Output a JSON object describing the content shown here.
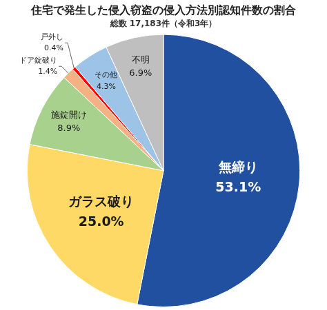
{
  "chart_data": {
    "type": "pie",
    "title": "住宅で発生した侵入窃盗の侵入方法別認知件数の割合",
    "subtitle": "総数 17,183件（令和3年）",
    "categories": [
      "無締り",
      "ガラス破り",
      "施錠開け",
      "ドア錠破り",
      "戸外し",
      "その他",
      "不明"
    ],
    "values": [
      53.1,
      25.0,
      8.9,
      1.4,
      0.4,
      4.3,
      6.9
    ],
    "value_labels": [
      "53.1%",
      "25.0%",
      "8.9%",
      "1.4%",
      "0.4%",
      "4.3%",
      "6.9%"
    ],
    "colors": [
      "#2150a0",
      "#ffd966",
      "#a9d18e",
      "#f4b183",
      "#ff0000",
      "#9dc3e6",
      "#bfbfbf"
    ],
    "data_labels": true
  }
}
